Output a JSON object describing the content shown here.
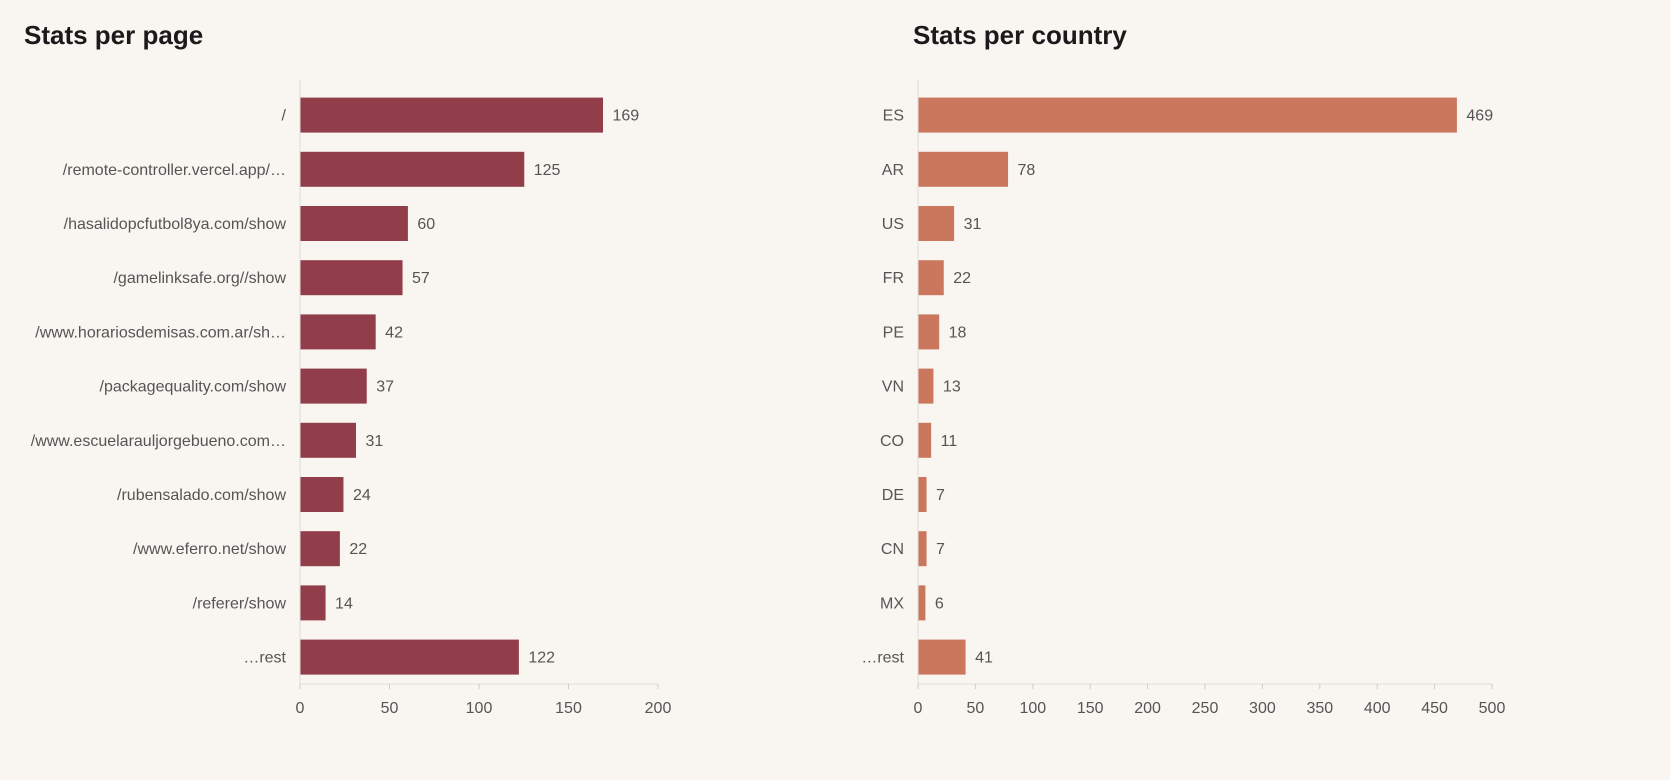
{
  "chart_data": [
    {
      "type": "bar",
      "orientation": "horizontal",
      "title": "Stats per page",
      "categories": [
        "/",
        "/remote-controller.vercel.app/…",
        "/hasalidopcfutbol8ya.com/show",
        "/gamelinksafe.org//show",
        "/www.horariosdemisas.com.ar/sh…",
        "/packagequality.com/show",
        "/www.escuelarauljorgebueno.com…",
        "/rubensalado.com/show",
        "/www.eferro.net/show",
        "/referer/show",
        "…rest"
      ],
      "values": [
        169,
        125,
        60,
        57,
        42,
        37,
        31,
        24,
        22,
        14,
        122
      ],
      "xlim": [
        0,
        200
      ],
      "xticks": [
        0,
        50,
        100,
        150,
        200
      ],
      "grid": false,
      "color": "#913e4a"
    },
    {
      "type": "bar",
      "orientation": "horizontal",
      "title": "Stats per country",
      "categories": [
        "ES",
        "AR",
        "US",
        "FR",
        "PE",
        "VN",
        "CO",
        "DE",
        "CN",
        "MX",
        "…rest"
      ],
      "values": [
        469,
        78,
        31,
        22,
        18,
        13,
        11,
        7,
        7,
        6,
        41
      ],
      "xlim": [
        0,
        500
      ],
      "xticks": [
        0,
        50,
        100,
        150,
        200,
        250,
        300,
        350,
        400,
        450,
        500
      ],
      "grid": false,
      "color": "#cb775d"
    }
  ]
}
